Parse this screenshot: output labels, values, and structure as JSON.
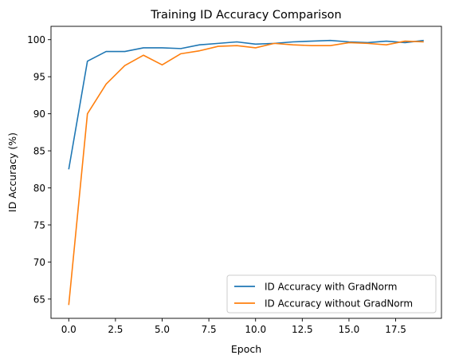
{
  "chart_data": {
    "type": "line",
    "title": "Training ID Accuracy Comparison",
    "xlabel": "Epoch",
    "ylabel": "ID Accuracy (%)",
    "xlim": [
      -0.95,
      19.95
    ],
    "ylim": [
      62.4,
      101.8
    ],
    "xticks": [
      0,
      2.5,
      5,
      7.5,
      10,
      12.5,
      15,
      17.5
    ],
    "xtick_labels": [
      "0.0",
      "2.5",
      "5.0",
      "7.5",
      "10.0",
      "12.5",
      "15.0",
      "17.5"
    ],
    "yticks": [
      65,
      70,
      75,
      80,
      85,
      90,
      95,
      100
    ],
    "ytick_labels": [
      "65",
      "70",
      "75",
      "80",
      "85",
      "90",
      "95",
      "100"
    ],
    "grid": false,
    "legend_position": "lower-right",
    "x": [
      0,
      1,
      2,
      3,
      4,
      5,
      6,
      7,
      8,
      9,
      10,
      11,
      12,
      13,
      14,
      15,
      16,
      17,
      18,
      19
    ],
    "series": [
      {
        "name": "ID Accuracy with GradNorm",
        "color": "#1f77b4",
        "values": [
          82.5,
          97.1,
          98.4,
          98.4,
          98.9,
          98.9,
          98.8,
          99.3,
          99.5,
          99.7,
          99.4,
          99.5,
          99.7,
          99.8,
          99.9,
          99.7,
          99.6,
          99.8,
          99.6,
          99.9
        ]
      },
      {
        "name": "ID Accuracy without GradNorm",
        "color": "#ff7f0e",
        "values": [
          64.2,
          90.0,
          94.0,
          96.5,
          97.9,
          96.6,
          98.1,
          98.5,
          99.1,
          99.2,
          98.9,
          99.5,
          99.3,
          99.2,
          99.2,
          99.6,
          99.5,
          99.3,
          99.8,
          99.7
        ]
      }
    ]
  }
}
